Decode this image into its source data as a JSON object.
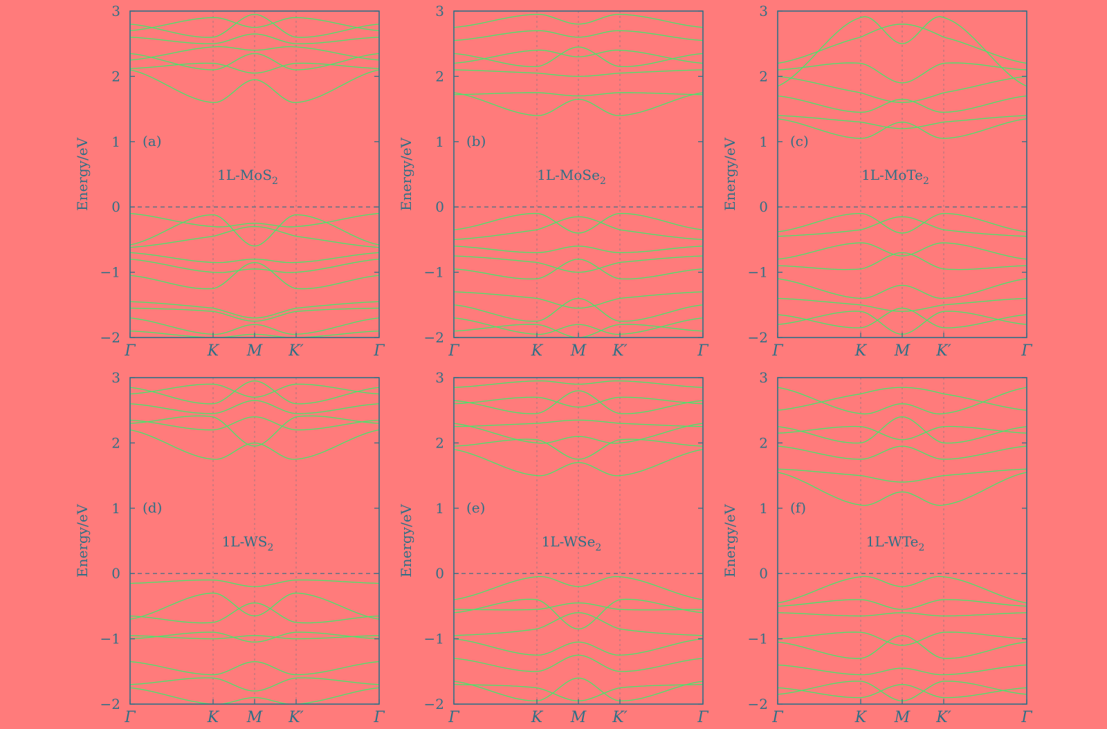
{
  "chart_data": [
    {
      "type": "line",
      "panel_label": "(a)",
      "material": "1L-MoS",
      "subscript": "2",
      "ylabel": "Energy/eV",
      "ylim": [
        -2,
        3
      ],
      "yticks": [
        "3",
        "2",
        "1",
        "0",
        "−1",
        "−2"
      ],
      "xticks": [
        "Γ",
        "K",
        "M",
        "K′",
        "Γ"
      ],
      "fermi_level": 0,
      "valence_bands": [
        {
          "gamma": -0.1,
          "k": -0.3,
          "m": -0.25
        },
        {
          "gamma": -0.58,
          "k": -0.12,
          "m": -0.6
        },
        {
          "gamma": -0.62,
          "k": -0.45,
          "m": -0.3
        },
        {
          "gamma": -0.7,
          "k": -0.85,
          "m": -0.8
        },
        {
          "gamma": -0.8,
          "k": -1.0,
          "m": -0.95
        },
        {
          "gamma": -1.05,
          "k": -1.25,
          "m": -0.85
        },
        {
          "gamma": -1.45,
          "k": -1.55,
          "m": -1.7
        },
        {
          "gamma": -1.55,
          "k": -1.6,
          "m": -1.75
        },
        {
          "gamma": -1.7,
          "k": -1.95,
          "m": -1.8
        },
        {
          "gamma": -1.9,
          "k": -2.0,
          "m": -1.95
        }
      ],
      "conduction_bands": [
        {
          "gamma": 2.1,
          "k": 1.6,
          "m": 1.95
        },
        {
          "gamma": 2.12,
          "k": 2.2,
          "m": 2.05
        },
        {
          "gamma": 2.25,
          "k": 2.45,
          "m": 2.4
        },
        {
          "gamma": 2.35,
          "k": 2.1,
          "m": 2.35
        },
        {
          "gamma": 2.6,
          "k": 2.5,
          "m": 2.65
        },
        {
          "gamma": 2.7,
          "k": 2.9,
          "m": 2.75
        },
        {
          "gamma": 2.8,
          "k": 2.6,
          "m": 2.95
        }
      ]
    },
    {
      "type": "line",
      "panel_label": "(b)",
      "material": "1L-MoSe",
      "subscript": "2",
      "ylabel": "Energy/eV",
      "ylim": [
        -2,
        3
      ],
      "yticks": [
        "3",
        "2",
        "1",
        "0",
        "−1",
        "−2"
      ],
      "xticks": [
        "Γ",
        "K",
        "M",
        "K′",
        "Γ"
      ],
      "fermi_level": 0,
      "valence_bands": [
        {
          "gamma": -0.35,
          "k": -0.1,
          "m": -0.4
        },
        {
          "gamma": -0.5,
          "k": -0.35,
          "m": -0.15
        },
        {
          "gamma": -0.6,
          "k": -0.7,
          "m": -0.6
        },
        {
          "gamma": -0.75,
          "k": -0.85,
          "m": -1.0
        },
        {
          "gamma": -0.95,
          "k": -1.1,
          "m": -0.8
        },
        {
          "gamma": -1.3,
          "k": -1.4,
          "m": -1.55
        },
        {
          "gamma": -1.5,
          "k": -1.75,
          "m": -1.4
        },
        {
          "gamma": -1.7,
          "k": -1.95,
          "m": -1.8
        },
        {
          "gamma": -1.9,
          "k": -1.8,
          "m": -2.0
        }
      ],
      "conduction_bands": [
        {
          "gamma": 1.75,
          "k": 1.4,
          "m": 1.65
        },
        {
          "gamma": 1.72,
          "k": 1.75,
          "m": 1.7
        },
        {
          "gamma": 2.1,
          "k": 2.05,
          "m": 2.0
        },
        {
          "gamma": 2.2,
          "k": 2.4,
          "m": 2.3
        },
        {
          "gamma": 2.35,
          "k": 2.15,
          "m": 2.45
        },
        {
          "gamma": 2.55,
          "k": 2.7,
          "m": 2.6
        },
        {
          "gamma": 2.75,
          "k": 2.95,
          "m": 2.8
        }
      ]
    },
    {
      "type": "line",
      "panel_label": "(c)",
      "material": "1L-MoTe",
      "subscript": "2",
      "ylabel": "Energy/eV",
      "ylim": [
        -2,
        3
      ],
      "yticks": [
        "3",
        "2",
        "1",
        "0",
        "−1",
        "−2"
      ],
      "xticks": [
        "Γ",
        "K",
        "M",
        "K′",
        "Γ"
      ],
      "fermi_level": 0,
      "valence_bands": [
        {
          "gamma": -0.38,
          "k": -0.1,
          "m": -0.4
        },
        {
          "gamma": -0.45,
          "k": -0.35,
          "m": -0.15
        },
        {
          "gamma": -0.8,
          "k": -0.55,
          "m": -0.75
        },
        {
          "gamma": -0.9,
          "k": -0.95,
          "m": -0.7
        },
        {
          "gamma": -1.1,
          "k": -1.4,
          "m": -1.2
        },
        {
          "gamma": -1.4,
          "k": -1.5,
          "m": -1.6
        },
        {
          "gamma": -1.65,
          "k": -1.85,
          "m": -1.55
        },
        {
          "gamma": -1.8,
          "k": -1.6,
          "m": -1.95
        }
      ],
      "conduction_bands": [
        {
          "gamma": 1.35,
          "k": 1.05,
          "m": 1.3
        },
        {
          "gamma": 1.4,
          "k": 1.3,
          "m": 1.2
        },
        {
          "gamma": 1.7,
          "k": 1.45,
          "m": 1.65
        },
        {
          "gamma": 2.0,
          "k": 1.75,
          "m": 1.6
        },
        {
          "gamma": 2.1,
          "k": 2.2,
          "m": 1.9
        },
        {
          "gamma": 2.2,
          "k": 2.6,
          "m": 2.8
        },
        {
          "gamma": 1.85,
          "k": 2.9,
          "m": 2.5
        }
      ]
    },
    {
      "type": "line",
      "panel_label": "(d)",
      "material": "1L-WS",
      "subscript": "2",
      "ylabel": "Energy/eV",
      "ylim": [
        -2,
        3
      ],
      "yticks": [
        "3",
        "2",
        "1",
        "0",
        "−1",
        "−2"
      ],
      "xticks": [
        "Γ",
        "K",
        "M",
        "K′",
        "Γ"
      ],
      "fermi_level": 0,
      "valence_bands": [
        {
          "gamma": -0.15,
          "k": -0.1,
          "m": -0.2
        },
        {
          "gamma": -0.7,
          "k": -0.3,
          "m": -0.65
        },
        {
          "gamma": -0.65,
          "k": -0.75,
          "m": -0.45
        },
        {
          "gamma": -0.95,
          "k": -1.0,
          "m": -0.95
        },
        {
          "gamma": -1.0,
          "k": -0.9,
          "m": -1.05
        },
        {
          "gamma": -1.35,
          "k": -1.55,
          "m": -1.35
        },
        {
          "gamma": -1.7,
          "k": -1.6,
          "m": -1.8
        },
        {
          "gamma": -1.75,
          "k": -2.0,
          "m": -1.9
        }
      ],
      "conduction_bands": [
        {
          "gamma": 2.2,
          "k": 1.75,
          "m": 2.0
        },
        {
          "gamma": 2.3,
          "k": 2.4,
          "m": 1.95
        },
        {
          "gamma": 2.35,
          "k": 2.2,
          "m": 2.4
        },
        {
          "gamma": 2.6,
          "k": 2.45,
          "m": 2.65
        },
        {
          "gamma": 2.75,
          "k": 2.9,
          "m": 2.7
        },
        {
          "gamma": 2.85,
          "k": 2.6,
          "m": 2.95
        }
      ]
    },
    {
      "type": "line",
      "panel_label": "(e)",
      "material": "1L-WSe",
      "subscript": "2",
      "ylabel": "Energy/eV",
      "ylim": [
        -2,
        3
      ],
      "yticks": [
        "3",
        "2",
        "1",
        "0",
        "−1",
        "−2"
      ],
      "xticks": [
        "Γ",
        "K",
        "M",
        "K′",
        "Γ"
      ],
      "fermi_level": 0,
      "valence_bands": [
        {
          "gamma": -0.4,
          "k": -0.05,
          "m": -0.2
        },
        {
          "gamma": -0.55,
          "k": -0.55,
          "m": -0.45
        },
        {
          "gamma": -0.6,
          "k": -0.4,
          "m": -0.85
        },
        {
          "gamma": -0.95,
          "k": -0.85,
          "m": -0.6
        },
        {
          "gamma": -1.0,
          "k": -1.25,
          "m": -1.05
        },
        {
          "gamma": -1.3,
          "k": -1.5,
          "m": -1.25
        },
        {
          "gamma": -1.65,
          "k": -1.95,
          "m": -1.6
        },
        {
          "gamma": -1.7,
          "k": -1.75,
          "m": -1.95
        }
      ],
      "conduction_bands": [
        {
          "gamma": 1.9,
          "k": 1.5,
          "m": 1.7
        },
        {
          "gamma": 1.95,
          "k": 2.05,
          "m": 1.75
        },
        {
          "gamma": 2.25,
          "k": 2.3,
          "m": 2.35
        },
        {
          "gamma": 2.3,
          "k": 2.0,
          "m": 2.1
        },
        {
          "gamma": 2.6,
          "k": 2.7,
          "m": 2.55
        },
        {
          "gamma": 2.65,
          "k": 2.45,
          "m": 2.8
        },
        {
          "gamma": 2.85,
          "k": 2.95,
          "m": 2.9
        }
      ]
    },
    {
      "type": "line",
      "panel_label": "(f)",
      "material": "1L-WTe",
      "subscript": "2",
      "ylabel": "Energy/eV",
      "ylim": [
        -2,
        3
      ],
      "yticks": [
        "3",
        "2",
        "1",
        "0",
        "−1",
        "−2"
      ],
      "xticks": [
        "Γ",
        "K",
        "M",
        "K′",
        "Γ"
      ],
      "fermi_level": 0,
      "valence_bands": [
        {
          "gamma": -0.45,
          "k": -0.05,
          "m": -0.2
        },
        {
          "gamma": -0.5,
          "k": -0.4,
          "m": -0.55
        },
        {
          "gamma": -0.6,
          "k": -0.65,
          "m": -0.6
        },
        {
          "gamma": -1.0,
          "k": -0.9,
          "m": -1.1
        },
        {
          "gamma": -1.05,
          "k": -1.3,
          "m": -0.95
        },
        {
          "gamma": -1.4,
          "k": -1.55,
          "m": -1.45
        },
        {
          "gamma": -1.75,
          "k": -1.9,
          "m": -1.7
        },
        {
          "gamma": -1.85,
          "k": -1.65,
          "m": -1.95
        }
      ],
      "conduction_bands": [
        {
          "gamma": 1.55,
          "k": 1.05,
          "m": 1.25
        },
        {
          "gamma": 1.6,
          "k": 1.5,
          "m": 1.4
        },
        {
          "gamma": 1.95,
          "k": 1.75,
          "m": 1.95
        },
        {
          "gamma": 2.15,
          "k": 2.25,
          "m": 2.05
        },
        {
          "gamma": 2.25,
          "k": 2.0,
          "m": 2.4
        },
        {
          "gamma": 2.5,
          "k": 2.75,
          "m": 2.85
        },
        {
          "gamma": 2.85,
          "k": 2.45,
          "m": 2.6
        }
      ]
    }
  ]
}
